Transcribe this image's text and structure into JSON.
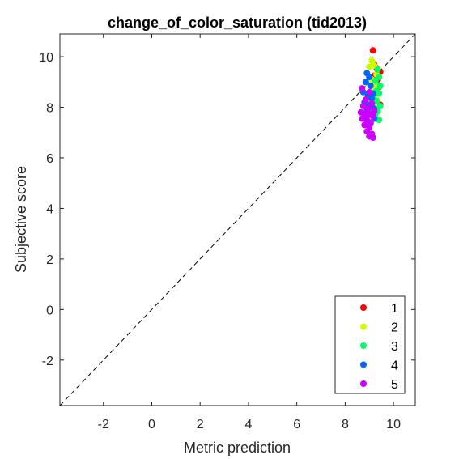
{
  "chart_data": {
    "type": "scatter",
    "title": "change_of_color_saturation (tid2013)",
    "xlabel": "Metric prediction",
    "ylabel": "Subjective score",
    "xlim": [
      -3.8,
      10.9
    ],
    "ylim": [
      -3.8,
      10.9
    ],
    "xticks": [
      -2,
      0,
      2,
      4,
      6,
      8,
      10
    ],
    "yticks": [
      -2,
      0,
      2,
      4,
      6,
      8,
      10
    ],
    "grid": false,
    "legend_position": "bottom-right",
    "reference_line": "y = x (dashed)",
    "series": [
      {
        "name": "1",
        "color": "#ff0000",
        "points": [
          [
            9.15,
            10.25
          ],
          [
            9.2,
            9.7
          ],
          [
            9.3,
            9.55
          ],
          [
            9.45,
            9.4
          ],
          [
            9.35,
            9.1
          ],
          [
            9.1,
            9.05
          ],
          [
            9.25,
            8.95
          ],
          [
            9.4,
            8.8
          ],
          [
            9.3,
            8.6
          ],
          [
            9.45,
            8.1
          ],
          [
            9.2,
            9.25
          ],
          [
            9.35,
            9.45
          ]
        ]
      },
      {
        "name": "2",
        "color": "#ccff00",
        "points": [
          [
            9.1,
            9.85
          ],
          [
            9.2,
            9.65
          ],
          [
            9.0,
            9.6
          ],
          [
            9.3,
            9.3
          ],
          [
            9.1,
            9.1
          ],
          [
            8.95,
            8.95
          ],
          [
            9.25,
            8.85
          ],
          [
            9.15,
            8.75
          ],
          [
            9.05,
            8.5
          ],
          [
            9.3,
            8.3
          ],
          [
            9.0,
            8.2
          ],
          [
            9.2,
            8.0
          ]
        ]
      },
      {
        "name": "3",
        "color": "#00ff66",
        "points": [
          [
            9.35,
            9.5
          ],
          [
            9.4,
            9.2
          ],
          [
            9.25,
            9.05
          ],
          [
            9.45,
            8.85
          ],
          [
            9.3,
            8.65
          ],
          [
            9.4,
            8.55
          ],
          [
            9.15,
            8.4
          ],
          [
            9.3,
            8.25
          ],
          [
            9.45,
            8.05
          ],
          [
            9.35,
            7.85
          ],
          [
            9.25,
            7.7
          ],
          [
            9.4,
            7.5
          ],
          [
            9.1,
            8.45
          ]
        ]
      },
      {
        "name": "4",
        "color": "#0066ff",
        "points": [
          [
            8.9,
            9.35
          ],
          [
            9.0,
            9.2
          ],
          [
            8.85,
            9.0
          ],
          [
            9.05,
            8.85
          ],
          [
            8.75,
            8.6
          ],
          [
            9.15,
            8.55
          ],
          [
            8.95,
            8.45
          ],
          [
            9.1,
            8.35
          ],
          [
            8.8,
            8.2
          ],
          [
            9.0,
            8.1
          ],
          [
            9.2,
            7.95
          ],
          [
            8.9,
            7.9
          ],
          [
            9.1,
            7.75
          ],
          [
            9.2,
            7.55
          ],
          [
            9.05,
            7.35
          ]
        ]
      },
      {
        "name": "5",
        "color": "#cc00ff",
        "points": [
          [
            8.7,
            8.75
          ],
          [
            9.0,
            8.6
          ],
          [
            8.85,
            8.3
          ],
          [
            9.1,
            8.15
          ],
          [
            8.75,
            8.05
          ],
          [
            8.95,
            7.95
          ],
          [
            8.65,
            7.8
          ],
          [
            8.8,
            7.75
          ],
          [
            9.0,
            7.7
          ],
          [
            9.15,
            7.65
          ],
          [
            8.7,
            7.55
          ],
          [
            8.9,
            7.5
          ],
          [
            9.05,
            7.4
          ],
          [
            8.8,
            7.3
          ],
          [
            9.0,
            7.2
          ],
          [
            8.9,
            7.05
          ],
          [
            9.1,
            6.95
          ],
          [
            9.0,
            6.85
          ],
          [
            9.15,
            6.8
          ],
          [
            8.85,
            7.6
          ],
          [
            9.2,
            7.85
          ]
        ]
      }
    ]
  }
}
